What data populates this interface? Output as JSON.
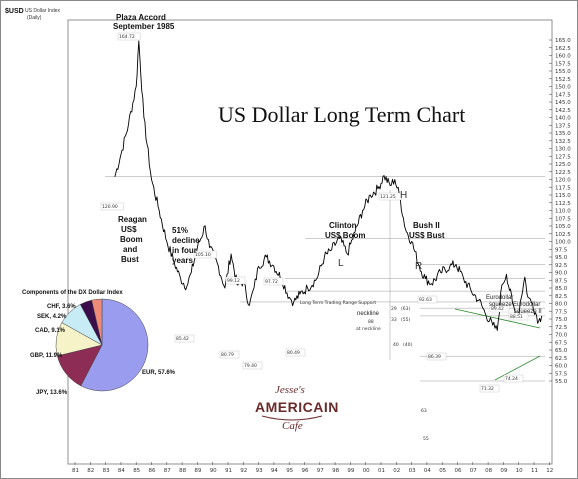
{
  "header": {
    "symbol": "$USD",
    "name": "US Dollar Index",
    "period": "(Daily)"
  },
  "title": "US Dollar Long Term Chart",
  "chart_data": {
    "type": "line",
    "title": "US Dollar Long Term Chart",
    "xlabel": "",
    "ylabel": "",
    "x_ticks": [
      "81",
      "82",
      "83",
      "84",
      "85",
      "86",
      "87",
      "88",
      "89",
      "90",
      "91",
      "92",
      "93",
      "94",
      "95",
      "96",
      "97",
      "98",
      "99",
      "00",
      "01",
      "02",
      "03",
      "04",
      "05",
      "06",
      "07",
      "08",
      "09",
      "10",
      "11",
      "12"
    ],
    "y_ticks": [
      55,
      57.5,
      60,
      62.5,
      65,
      67.5,
      70,
      72.5,
      75,
      77.5,
      80,
      82.5,
      85,
      87.5,
      90,
      92.5,
      95,
      97.5,
      100,
      102.5,
      105,
      107.5,
      110,
      112.5,
      115,
      117.5,
      120,
      122.5,
      125,
      127.5,
      130,
      132.5,
      135,
      137.5,
      140,
      142.5,
      145,
      147.5,
      150,
      152.5,
      155,
      157.5,
      160,
      162.5,
      165
    ],
    "ylim": [
      53,
      168
    ],
    "grid": false,
    "series": [
      {
        "x": [
          1983.6,
          1984.0,
          1984.5,
          1985.0,
          1985.17,
          1985.5,
          1986.0,
          1986.5,
          1987.0,
          1987.5,
          1987.9,
          1988.3,
          1988.6,
          1989.0,
          1989.5,
          1989.8,
          1990.3,
          1990.8,
          1991.2,
          1991.6,
          1992.0,
          1992.4,
          1992.7,
          1993.0,
          1993.5,
          1994.0,
          1994.5,
          1995.0,
          1995.3,
          1995.7,
          1996.2,
          1996.8,
          1997.3,
          1997.7,
          1998.3,
          1998.8,
          1999.3,
          1999.8,
          2000.3,
          2000.8,
          2001.2,
          2001.6,
          2001.9,
          2002.2,
          2002.6,
          2003.0,
          2003.5,
          2003.9,
          2004.3,
          2004.9,
          2005.5,
          2005.9,
          2006.4,
          2006.9,
          2007.4,
          2007.8,
          2008.3,
          2008.6,
          2008.9,
          2009.2,
          2009.6,
          2009.9,
          2010.4,
          2010.6,
          2010.9,
          2011.3,
          2011.5
        ],
        "values": [
          120.9,
          128,
          138,
          150,
          164.72,
          140,
          120,
          110,
          100,
          93,
          88,
          85.42,
          90,
          98,
          105.1,
          98,
          93,
          85,
          96,
          86,
          87,
          79.4,
          85,
          92,
          95,
          92,
          88,
          82,
          80.49,
          83,
          85,
          88,
          95,
          97,
          101,
          96,
          103,
          110,
          115,
          117,
          121.25,
          118,
          120,
          115,
          104,
          100,
          92,
          88,
          86.39,
          90,
          92,
          92.63,
          88,
          84,
          81,
          77,
          73,
          71.32,
          86,
          89.42,
          80,
          75,
          88.51,
          82,
          80,
          74.24,
          76
        ]
      }
    ],
    "value_labels": [
      "120.90",
      "164.72",
      "85.42",
      "105.10",
      "80.79",
      "79.40",
      "99.12",
      "97.72",
      "80.49",
      "121.25",
      "92.63",
      "86.39",
      "89.42",
      "71.32",
      "88.51",
      "74.24"
    ],
    "horizontal_lines": [
      {
        "label": "",
        "y": 120.9
      },
      {
        "label": "",
        "y": 101
      },
      {
        "label": "",
        "y": 92.5
      },
      {
        "label": "",
        "y": 88
      },
      {
        "label": "",
        "y": 84
      },
      {
        "label": "Long Term Trading Range Support",
        "y": 80.5
      },
      {
        "label": "",
        "y": 78.5
      },
      {
        "label": "",
        "y": 76
      },
      {
        "label": "",
        "y": 63
      },
      {
        "label": "",
        "y": 55
      }
    ],
    "level_labels": [
      "29",
      "(63)",
      "33",
      "(55)",
      "40",
      "(40)",
      "63",
      "55"
    ],
    "annotations": [
      "Plaza Accord",
      "September 1985",
      "Reagan",
      "US$",
      "Boom",
      "and",
      "Bust",
      "51%",
      "decline",
      "in four",
      "years",
      "Clinton",
      "US$ Boom",
      "Bush II",
      "US$ Bust",
      "Eurodollar",
      "squeeze",
      "Eurodollar",
      "squeeze II",
      "neckline",
      "88",
      "at neckline",
      "H",
      "L",
      "R"
    ],
    "inset_pie": {
      "type": "pie",
      "title": "Components of the DX Dollar Index",
      "slices": [
        {
          "label": "EUR",
          "value": 57.6,
          "display": "EUR, 57.6%",
          "color": "#9a9cf0"
        },
        {
          "label": "JPY",
          "value": 13.6,
          "display": "JPY, 13.6%",
          "color": "#8d2d55"
        },
        {
          "label": "GBP",
          "value": 11.9,
          "display": "GBP, 11.9%",
          "color": "#f6f3c8"
        },
        {
          "label": "CAD",
          "value": 9.1,
          "display": "CAD, 9.1%",
          "color": "#c7ecf5"
        },
        {
          "label": "SEK",
          "value": 4.2,
          "display": "SEK, 4.2%",
          "color": "#3a0e4a"
        },
        {
          "label": "CHF",
          "value": 3.6,
          "display": "CHF, 3.6%",
          "color": "#ee8a78"
        }
      ]
    }
  },
  "logo": {
    "line1": "Jesse's",
    "line2": "AMERICAIN",
    "line3": "Cafe"
  }
}
